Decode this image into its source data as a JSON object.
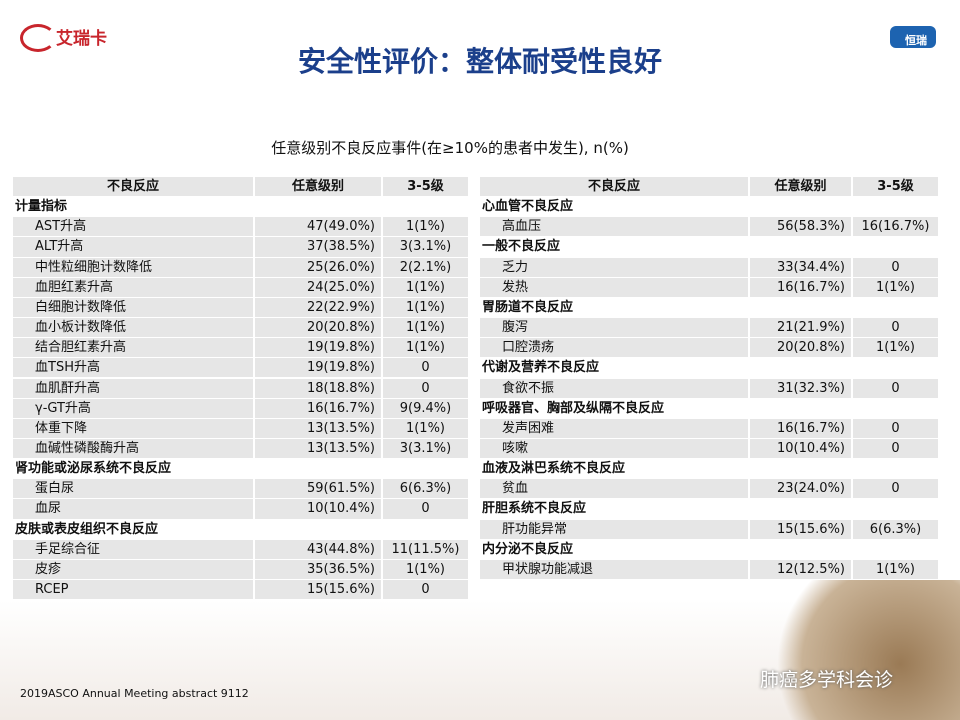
{
  "header": {
    "title": "安全性评价：整体耐受性良好",
    "logo_left": "艾瑞卡",
    "logo_right": "恒瑞"
  },
  "subtitle": "任意级别不良反应事件(在≥10%的患者中发生), n(%)",
  "tables": [
    {
      "headers": [
        "不良反应",
        "任意级别",
        "3-5级"
      ],
      "rows": [
        [
          "计量指标"
        ],
        [
          "AST升高",
          "47(49.0%)",
          "1(1%)"
        ],
        [
          "ALT升高",
          "37(38.5%)",
          "3(3.1%)"
        ],
        [
          "中性粒细胞计数降低",
          "25(26.0%)",
          "2(2.1%)"
        ],
        [
          "血胆红素升高",
          "24(25.0%)",
          "1(1%)"
        ],
        [
          "白细胞计数降低",
          "22(22.9%)",
          "1(1%)"
        ],
        [
          "血小板计数降低",
          "20(20.8%)",
          "1(1%)"
        ],
        [
          "结合胆红素升高",
          "19(19.8%)",
          "1(1%)"
        ],
        [
          "血TSH升高",
          "19(19.8%)",
          "0"
        ],
        [
          "血肌酐升高",
          "18(18.8%)",
          "0"
        ],
        [
          "γ-GT升高",
          "16(16.7%)",
          "9(9.4%)"
        ],
        [
          "体重下降",
          "13(13.5%)",
          "1(1%)"
        ],
        [
          "血碱性磷酸酶升高",
          "13(13.5%)",
          "3(3.1%)"
        ],
        [
          "肾功能或泌尿系统不良反应"
        ],
        [
          "蛋白尿",
          "59(61.5%)",
          "6(6.3%)"
        ],
        [
          "血尿",
          "10(10.4%)",
          "0"
        ],
        [
          "皮肤或表皮组织不良反应"
        ],
        [
          "手足综合征",
          "43(44.8%)",
          "11(11.5%)"
        ],
        [
          "皮疹",
          "35(36.5%)",
          "1(1%)"
        ],
        [
          "RCEP",
          "15(15.6%)",
          "0"
        ]
      ]
    },
    {
      "headers": [
        "不良反应",
        "任意级别",
        "3-5级"
      ],
      "rows": [
        [
          "心血管不良反应"
        ],
        [
          "高血压",
          "56(58.3%)",
          "16(16.7%)"
        ],
        [
          "一般不良反应"
        ],
        [
          "乏力",
          "33(34.4%)",
          "0"
        ],
        [
          "发热",
          "16(16.7%)",
          "1(1%)"
        ],
        [
          "胃肠道不良反应"
        ],
        [
          "腹泻",
          "21(21.9%)",
          "0"
        ],
        [
          "口腔溃疡",
          "20(20.8%)",
          "1(1%)"
        ],
        [
          "代谢及营养不良反应"
        ],
        [
          "食欲不振",
          "31(32.3%)",
          "0"
        ],
        [
          "呼吸器官、胸部及纵隔不良反应"
        ],
        [
          "发声困难",
          "16(16.7%)",
          "0"
        ],
        [
          "咳嗽",
          "10(10.4%)",
          "0"
        ],
        [
          "血液及淋巴系统不良反应"
        ],
        [
          "贫血",
          "23(24.0%)",
          "0"
        ],
        [
          "肝胆系统不良反应"
        ],
        [
          "肝功能异常",
          "15(15.6%)",
          "6(6.3%)"
        ],
        [
          "内分泌不良反应"
        ],
        [
          "甲状腺功能减退",
          "12(12.5%)",
          "1(1%)"
        ]
      ]
    }
  ],
  "footer": {
    "source": "2019ASCO Annual Meeting abstract 9112",
    "watermark": "肺癌多学科会诊"
  }
}
